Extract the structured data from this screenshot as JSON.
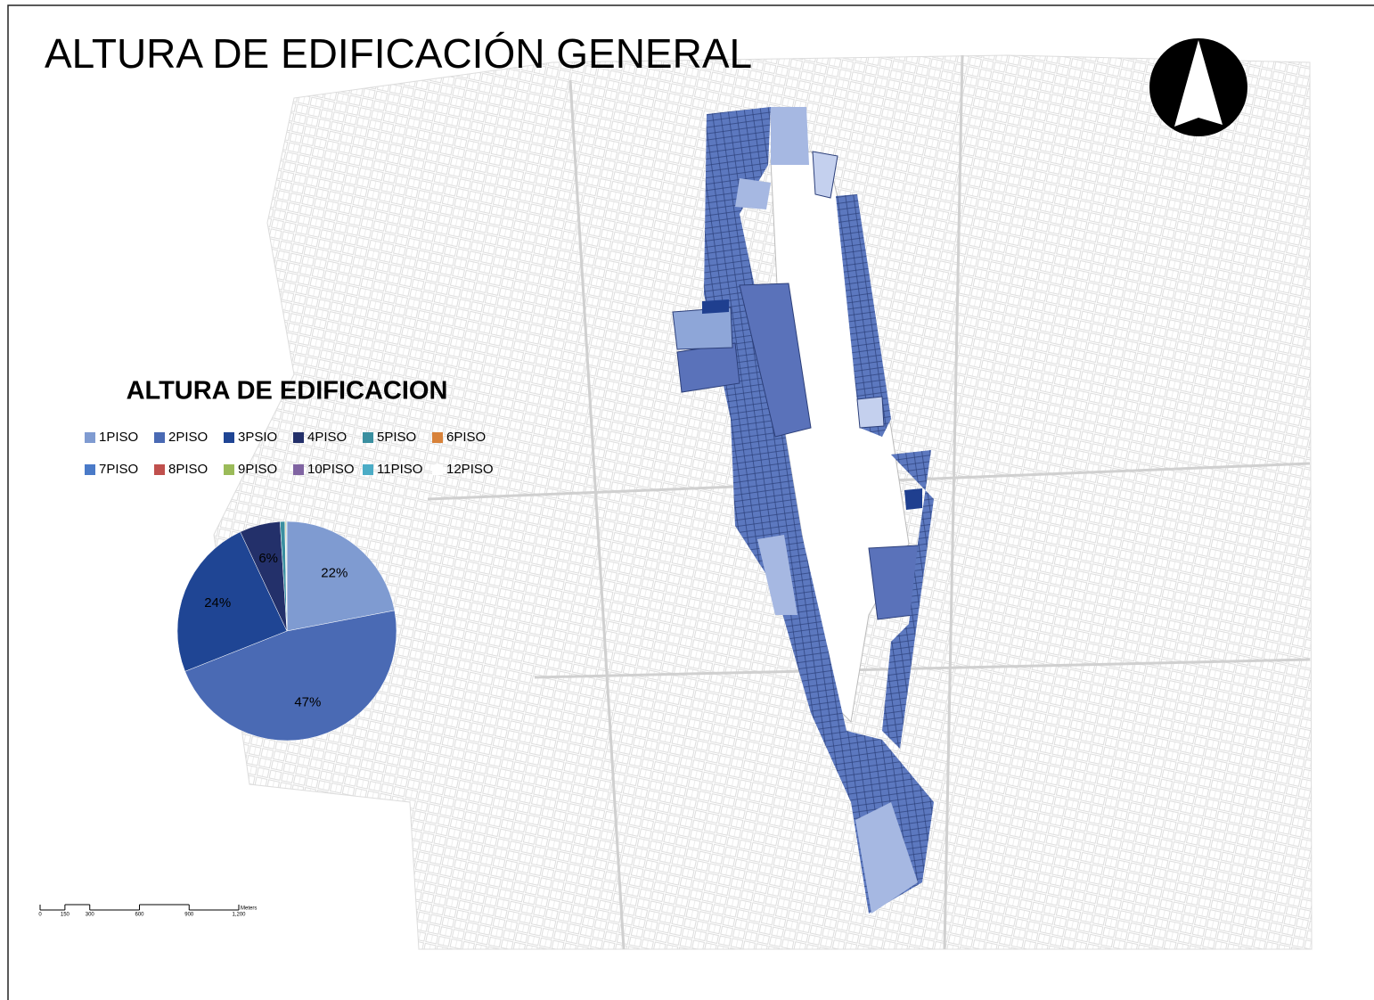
{
  "title": "ALTURA DE EDIFICACIÓN GENERAL",
  "chart_data": {
    "type": "pie",
    "title": "ALTURA DE EDIFICACION",
    "categories": [
      "1PISO",
      "2PISO",
      "3PSIO",
      "4PISO",
      "5PISO",
      "6PISO",
      "7PISO",
      "8PISO",
      "9PISO",
      "10PISO",
      "11PISO",
      "12PISO"
    ],
    "values": [
      22,
      47,
      24,
      6,
      0.7,
      0.1,
      0,
      0,
      0.1,
      0,
      0.1,
      0
    ],
    "value_labels": [
      "22%",
      "47%",
      "24%",
      "6%",
      null,
      null,
      null,
      null,
      null,
      null,
      null,
      null
    ],
    "colors": [
      "#7f9bd1",
      "#4a6ab4",
      "#1f4594",
      "#23306a",
      "#3a8fa0",
      "#d8823a",
      "#4a7ac8",
      "#c0504d",
      "#9bbb59",
      "#8064a2",
      "#4bacc6",
      "#ffffff"
    ]
  },
  "scale_bar": {
    "unit": "Meters",
    "xlim": [
      0,
      1200
    ],
    "ticks": [
      0,
      150,
      300,
      600,
      900,
      {
        "value": 1200,
        "label": "1,200"
      }
    ]
  }
}
